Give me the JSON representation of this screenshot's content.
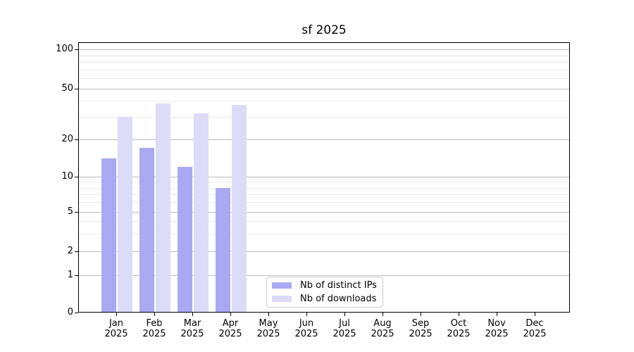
{
  "title": "sf 2025",
  "chart_data": {
    "type": "bar",
    "title": "sf 2025",
    "categories": [
      "Jan",
      "Feb",
      "Mar",
      "Apr",
      "May",
      "Jun",
      "Jul",
      "Aug",
      "Sep",
      "Oct",
      "Nov",
      "Dec"
    ],
    "year_label": "2025",
    "series": [
      {
        "name": "Nb of distinct IPs",
        "color": "#a9a9f3",
        "values": [
          14,
          17,
          12,
          8,
          0,
          0,
          0,
          0,
          0,
          0,
          0,
          0
        ]
      },
      {
        "name": "Nb of downloads",
        "color": "#dcdcf8",
        "values": [
          30,
          38,
          32,
          37,
          0,
          0,
          0,
          0,
          0,
          0,
          0,
          0
        ]
      }
    ],
    "xlabel": "",
    "ylabel": "",
    "y_axis_scale": "log-like (linear 0-1, log above)",
    "y_tick_labels": [
      0,
      1,
      2,
      5,
      10,
      20,
      50,
      100
    ],
    "ylim": [
      0,
      115
    ],
    "grid": "major and minor horizontal gridlines",
    "legend_position": "lower center, inside plot"
  },
  "legend": {
    "items": [
      {
        "label": "Nb of distinct IPs",
        "color": "#a9a9f3"
      },
      {
        "label": "Nb of downloads",
        "color": "#dcdcf8"
      }
    ]
  }
}
